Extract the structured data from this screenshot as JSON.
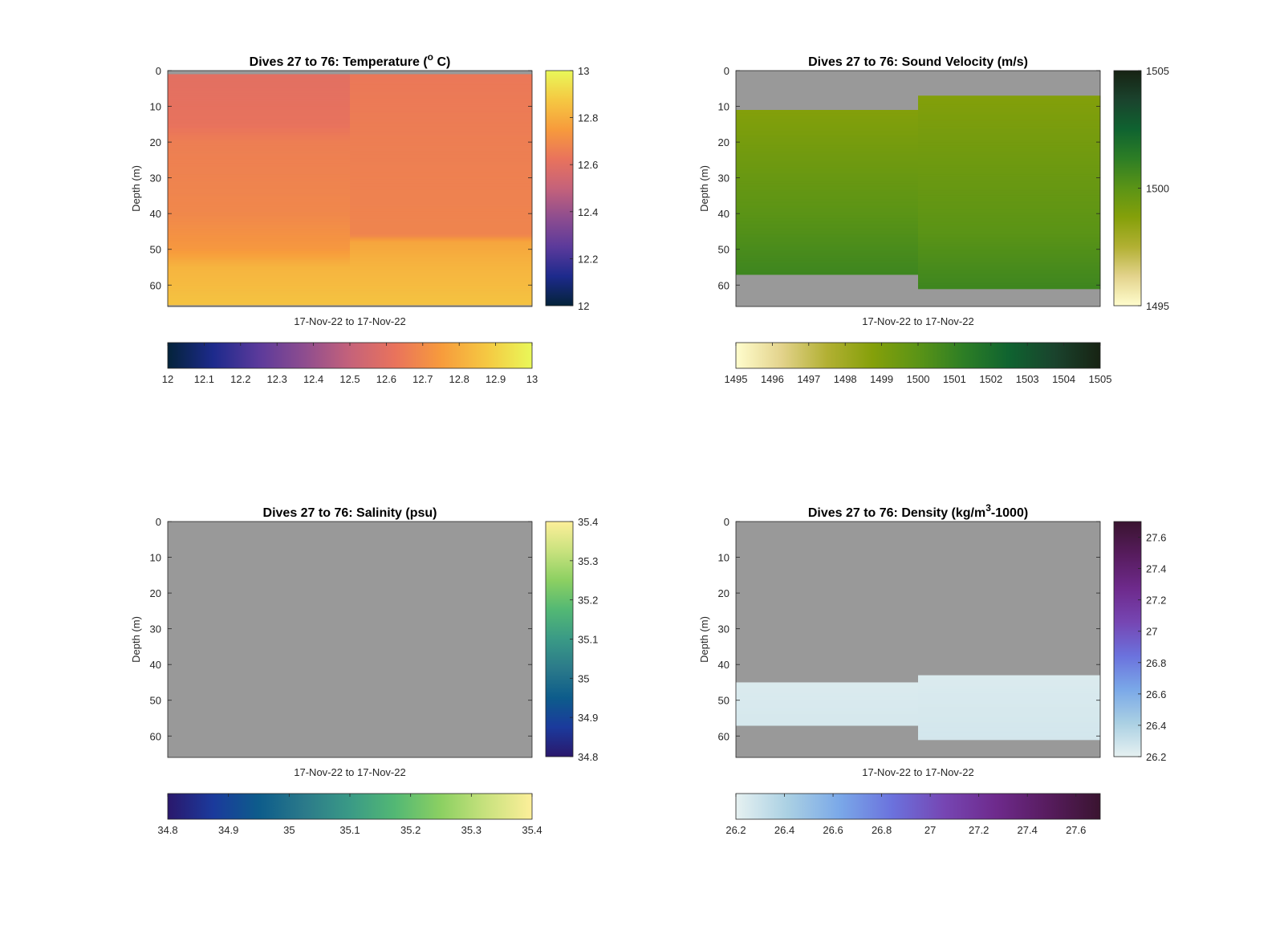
{
  "chart_data": [
    {
      "type": "heatmap",
      "title": "Dives 27 to 76: Temperature (°C)",
      "title_parts": [
        "Dives 27 to 76: Temperature (",
        "o",
        " C)"
      ],
      "xlabel": "17-Nov-22 to 17-Nov-22",
      "ylabel": "Depth (m)",
      "ylim": [
        0,
        66
      ],
      "y_reversed": true,
      "yticks": [
        "0",
        "10",
        "20",
        "30",
        "40",
        "50",
        "60"
      ],
      "clim": [
        12,
        13
      ],
      "colormap": "thermal",
      "colormap_stops": [
        "#04233a",
        "#1d2a8c",
        "#5b3a9b",
        "#8e4d8f",
        "#c5627a",
        "#e9735c",
        "#f79b3c",
        "#f5c842",
        "#e9f859"
      ],
      "nan_color": "#999999",
      "right_colorbar_ticks": [
        "12",
        "12.2",
        "12.4",
        "12.6",
        "12.8",
        "13"
      ],
      "bottom_colorbar_ticks": [
        "12",
        "12.1",
        "12.2",
        "12.3",
        "12.4",
        "12.5",
        "12.6",
        "12.7",
        "12.8",
        "12.9",
        "13"
      ],
      "columns": [
        {
          "x_range": [
            0,
            0.5
          ],
          "data_range": [
            1,
            65.5
          ],
          "profile": [
            [
              1,
              12.6
            ],
            [
              15,
              12.62
            ],
            [
              20,
              12.66
            ],
            [
              40,
              12.69
            ],
            [
              50,
              12.74
            ],
            [
              55,
              12.82
            ],
            [
              65.5,
              12.86
            ]
          ]
        },
        {
          "x_range": [
            0.5,
            1
          ],
          "data_range": [
            1,
            65.5
          ],
          "profile": [
            [
              1,
              12.64
            ],
            [
              20,
              12.66
            ],
            [
              46,
              12.68
            ],
            [
              48,
              12.78
            ],
            [
              55,
              12.82
            ],
            [
              65.5,
              12.86
            ]
          ]
        }
      ]
    },
    {
      "type": "heatmap",
      "title": "Dives 27 to 76: Sound Velocity (m/s)",
      "title_parts": [
        "Dives 27 to 76: Sound Velocity (m/s)"
      ],
      "xlabel": "17-Nov-22 to 17-Nov-22",
      "ylabel": "Depth (m)",
      "ylim": [
        0,
        66
      ],
      "y_reversed": true,
      "yticks": [
        "0",
        "10",
        "20",
        "30",
        "40",
        "50",
        "60"
      ],
      "clim": [
        1495,
        1505
      ],
      "colormap": "speed",
      "colormap_stops": [
        "#fffdcd",
        "#e3d38c",
        "#b2b033",
        "#85a00a",
        "#5b9416",
        "#2d7e25",
        "#0f6330",
        "#1a432d",
        "#172313"
      ],
      "nan_color": "#999999",
      "right_colorbar_ticks": [
        "1495",
        "1500",
        "1505"
      ],
      "bottom_colorbar_ticks": [
        "1495",
        "1496",
        "1497",
        "1498",
        "1499",
        "1500",
        "1501",
        "1502",
        "1503",
        "1504",
        "1505"
      ],
      "columns": [
        {
          "x_range": [
            0,
            0.5
          ],
          "data_range": [
            11,
            57
          ],
          "profile": [
            [
              11,
              1498.8
            ],
            [
              25,
              1499.4
            ],
            [
              40,
              1500.0
            ],
            [
              57,
              1500.8
            ]
          ]
        },
        {
          "x_range": [
            0.5,
            1
          ],
          "data_range": [
            7,
            61
          ],
          "profile": [
            [
              7,
              1498.8
            ],
            [
              25,
              1499.4
            ],
            [
              45,
              1500.0
            ],
            [
              61,
              1500.8
            ]
          ]
        }
      ]
    },
    {
      "type": "heatmap",
      "title": "Dives 27 to 76: Salinity (psu)",
      "title_parts": [
        "Dives 27 to 76: Salinity (psu)"
      ],
      "xlabel": "17-Nov-22 to 17-Nov-22",
      "ylabel": "Depth (m)",
      "ylim": [
        0,
        66
      ],
      "y_reversed": true,
      "yticks": [
        "0",
        "10",
        "20",
        "30",
        "40",
        "50",
        "60"
      ],
      "clim": [
        34.8,
        35.4
      ],
      "colormap": "haline",
      "colormap_stops": [
        "#2a186c",
        "#1b3a9c",
        "#0d5c8b",
        "#2b7a8a",
        "#3a9a86",
        "#53b874",
        "#8cd062",
        "#c9e27e",
        "#fdef9a"
      ],
      "nan_color": "#999999",
      "right_colorbar_ticks": [
        "34.8",
        "34.9",
        "35",
        "35.1",
        "35.2",
        "35.3",
        "35.4"
      ],
      "bottom_colorbar_ticks": [
        "34.8",
        "34.9",
        "35",
        "35.1",
        "35.2",
        "35.3",
        "35.4"
      ],
      "columns": []
    },
    {
      "type": "heatmap",
      "title": "Dives 27 to 76: Density (kg/m³-1000)",
      "title_parts": [
        "Dives 27 to 76: Density (kg/m",
        "3",
        "-1000)"
      ],
      "xlabel": "17-Nov-22 to 17-Nov-22",
      "ylabel": "Depth (m)",
      "ylim": [
        0,
        66
      ],
      "y_reversed": true,
      "yticks": [
        "0",
        "10",
        "20",
        "30",
        "40",
        "50",
        "60"
      ],
      "clim": [
        26.2,
        27.7
      ],
      "colormap": "dense",
      "colormap_stops": [
        "#e6f1f1",
        "#aad0e3",
        "#7aa8e8",
        "#6b72dd",
        "#7646b3",
        "#6e2a8c",
        "#571c5e",
        "#3a1430"
      ],
      "nan_color": "#999999",
      "right_colorbar_ticks": [
        "26.2",
        "26.4",
        "26.6",
        "26.8",
        "27",
        "27.2",
        "27.4",
        "27.6"
      ],
      "bottom_colorbar_ticks": [
        "26.2",
        "26.4",
        "26.6",
        "26.8",
        "27",
        "27.2",
        "27.4",
        "27.6"
      ],
      "columns": [
        {
          "x_range": [
            0,
            0.5
          ],
          "data_range": [
            45,
            57
          ],
          "profile": [
            [
              45,
              26.24
            ],
            [
              57,
              26.26
            ]
          ]
        },
        {
          "x_range": [
            0.5,
            1
          ],
          "data_range": [
            43,
            61
          ],
          "profile": [
            [
              43,
              26.24
            ],
            [
              61,
              26.27
            ]
          ]
        }
      ]
    }
  ]
}
